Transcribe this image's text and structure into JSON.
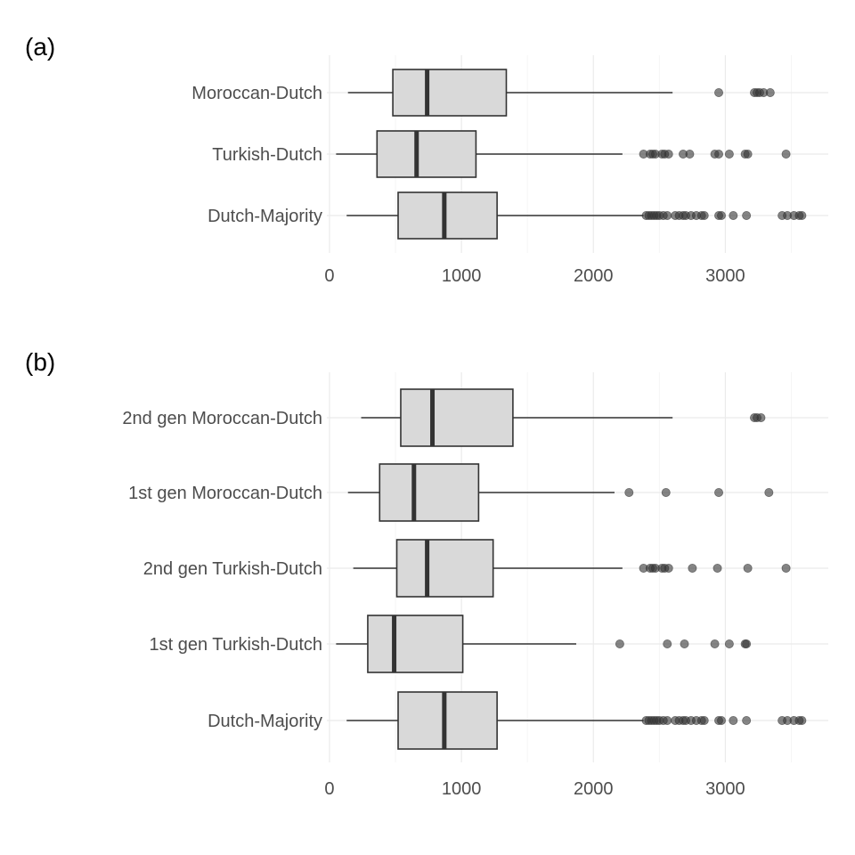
{
  "chart_data": [
    {
      "type": "boxplot",
      "panel_label": "(a)",
      "orientation": "horizontal",
      "xlim": [
        -20,
        3780
      ],
      "x_ticks": [
        0,
        1000,
        2000,
        3000
      ],
      "x_tick_labels": [
        "0",
        "1000",
        "2000",
        "3000"
      ],
      "grid": true,
      "categories": [
        "Moroccan-Dutch",
        "Turkish-Dutch",
        "Dutch-Majority"
      ],
      "boxes": [
        {
          "category": "Moroccan-Dutch",
          "whisker_low": 140,
          "q1": 480,
          "median": 740,
          "q3": 1340,
          "whisker_high": 2600,
          "outliers": [
            2950,
            3220,
            3240,
            3260,
            3290,
            3340
          ]
        },
        {
          "category": "Turkish-Dutch",
          "whisker_low": 50,
          "q1": 360,
          "median": 660,
          "q3": 1110,
          "whisker_high": 2220,
          "outliers": [
            2380,
            2430,
            2450,
            2470,
            2520,
            2540,
            2570,
            2680,
            2730,
            2920,
            2950,
            3030,
            3150,
            3170,
            3460
          ]
        },
        {
          "category": "Dutch-Majority",
          "whisker_low": 130,
          "q1": 520,
          "median": 870,
          "q3": 1270,
          "whisker_high": 2380,
          "outliers": [
            2400,
            2420,
            2440,
            2460,
            2480,
            2500,
            2530,
            2560,
            2620,
            2650,
            2680,
            2700,
            2740,
            2780,
            2820,
            2840,
            2950,
            2970,
            3060,
            3160,
            3430,
            3470,
            3520,
            3560,
            3580
          ]
        }
      ]
    },
    {
      "type": "boxplot",
      "panel_label": "(b)",
      "orientation": "horizontal",
      "xlim": [
        -20,
        3780
      ],
      "x_ticks": [
        0,
        1000,
        2000,
        3000
      ],
      "x_tick_labels": [
        "0",
        "1000",
        "2000",
        "3000"
      ],
      "grid": true,
      "categories": [
        "2nd gen Moroccan-Dutch",
        "1st gen Moroccan-Dutch",
        "2nd gen Turkish-Dutch",
        "1st gen Turkish-Dutch",
        "Dutch-Majority"
      ],
      "boxes": [
        {
          "category": "2nd gen Moroccan-Dutch",
          "whisker_low": 240,
          "q1": 540,
          "median": 780,
          "q3": 1390,
          "whisker_high": 2600,
          "outliers": [
            3220,
            3240,
            3270
          ]
        },
        {
          "category": "1st gen Moroccan-Dutch",
          "whisker_low": 140,
          "q1": 380,
          "median": 640,
          "q3": 1130,
          "whisker_high": 2160,
          "outliers": [
            2270,
            2550,
            2950,
            3330
          ]
        },
        {
          "category": "2nd gen Turkish-Dutch",
          "whisker_low": 180,
          "q1": 510,
          "median": 740,
          "q3": 1240,
          "whisker_high": 2220,
          "outliers": [
            2380,
            2430,
            2450,
            2470,
            2520,
            2540,
            2570,
            2750,
            2940,
            3170,
            3460
          ]
        },
        {
          "category": "1st gen Turkish-Dutch",
          "whisker_low": 50,
          "q1": 290,
          "median": 490,
          "q3": 1010,
          "whisker_high": 1870,
          "outliers": [
            2200,
            2560,
            2690,
            2920,
            3030,
            3150,
            3160
          ]
        },
        {
          "category": "Dutch-Majority",
          "whisker_low": 130,
          "q1": 520,
          "median": 870,
          "q3": 1270,
          "whisker_high": 2380,
          "outliers": [
            2400,
            2420,
            2440,
            2460,
            2480,
            2500,
            2530,
            2560,
            2620,
            2650,
            2680,
            2700,
            2740,
            2780,
            2820,
            2840,
            2950,
            2970,
            3060,
            3160,
            3430,
            3470,
            3520,
            3560,
            3580
          ]
        }
      ]
    }
  ]
}
